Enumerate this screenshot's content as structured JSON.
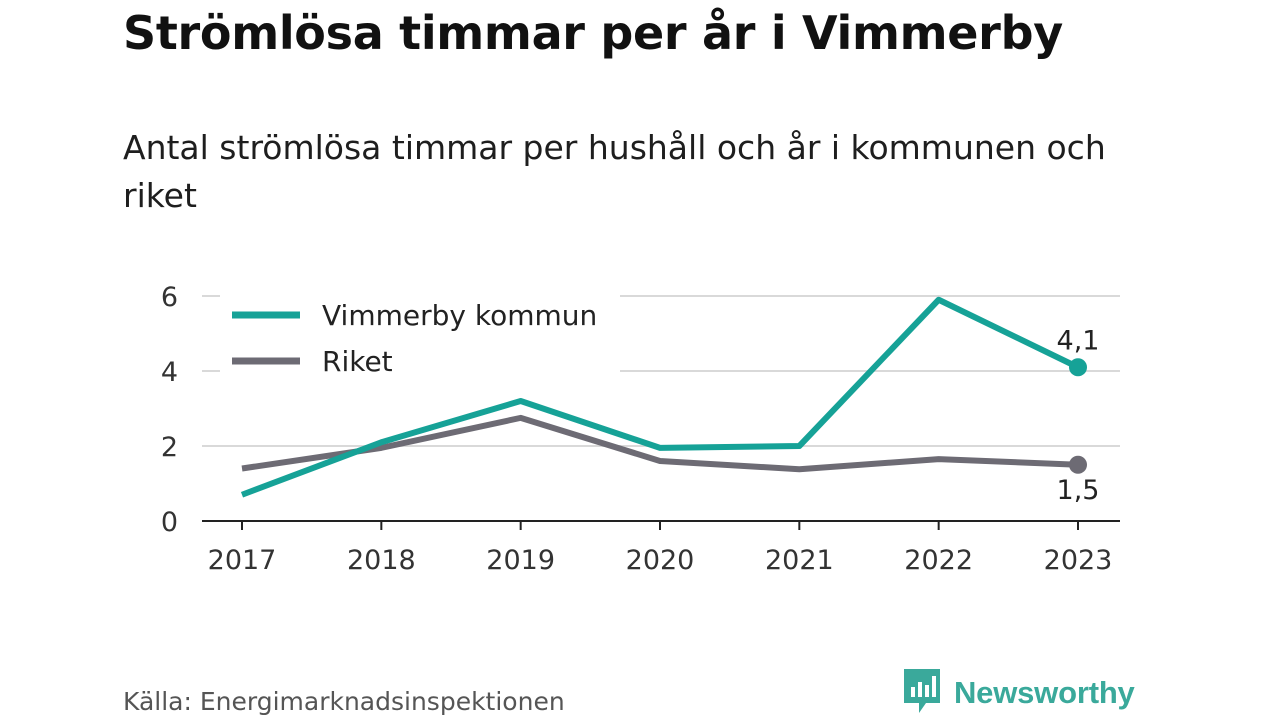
{
  "header": {
    "title": "Strömlösa timmar per år i Vimmerby",
    "subtitle": "Antal strömlösa timmar per hushåll och år i kommunen och riket"
  },
  "footer": {
    "source": "Källa: Energimarknadsinspektionen",
    "brand_name": "Newsworthy",
    "brand_icon": "bar-chart-icon",
    "brand_color": "#3aa99b"
  },
  "chart_data": {
    "type": "line",
    "x": [
      "2017",
      "2018",
      "2019",
      "2020",
      "2021",
      "2022",
      "2023"
    ],
    "ylim": [
      0,
      6
    ],
    "yticks": [
      0,
      2,
      4,
      6
    ],
    "grid": true,
    "legend_position": "top-left",
    "series": [
      {
        "name": "Vimmerby kommun",
        "color": "#16a297",
        "values": [
          0.7,
          2.1,
          3.2,
          1.95,
          2.0,
          5.9,
          4.1
        ],
        "end_label": "4,1"
      },
      {
        "name": "Riket",
        "color": "#6d6b74",
        "values": [
          1.4,
          1.95,
          2.75,
          1.6,
          1.38,
          1.65,
          1.5
        ],
        "end_label": "1,5"
      }
    ]
  }
}
